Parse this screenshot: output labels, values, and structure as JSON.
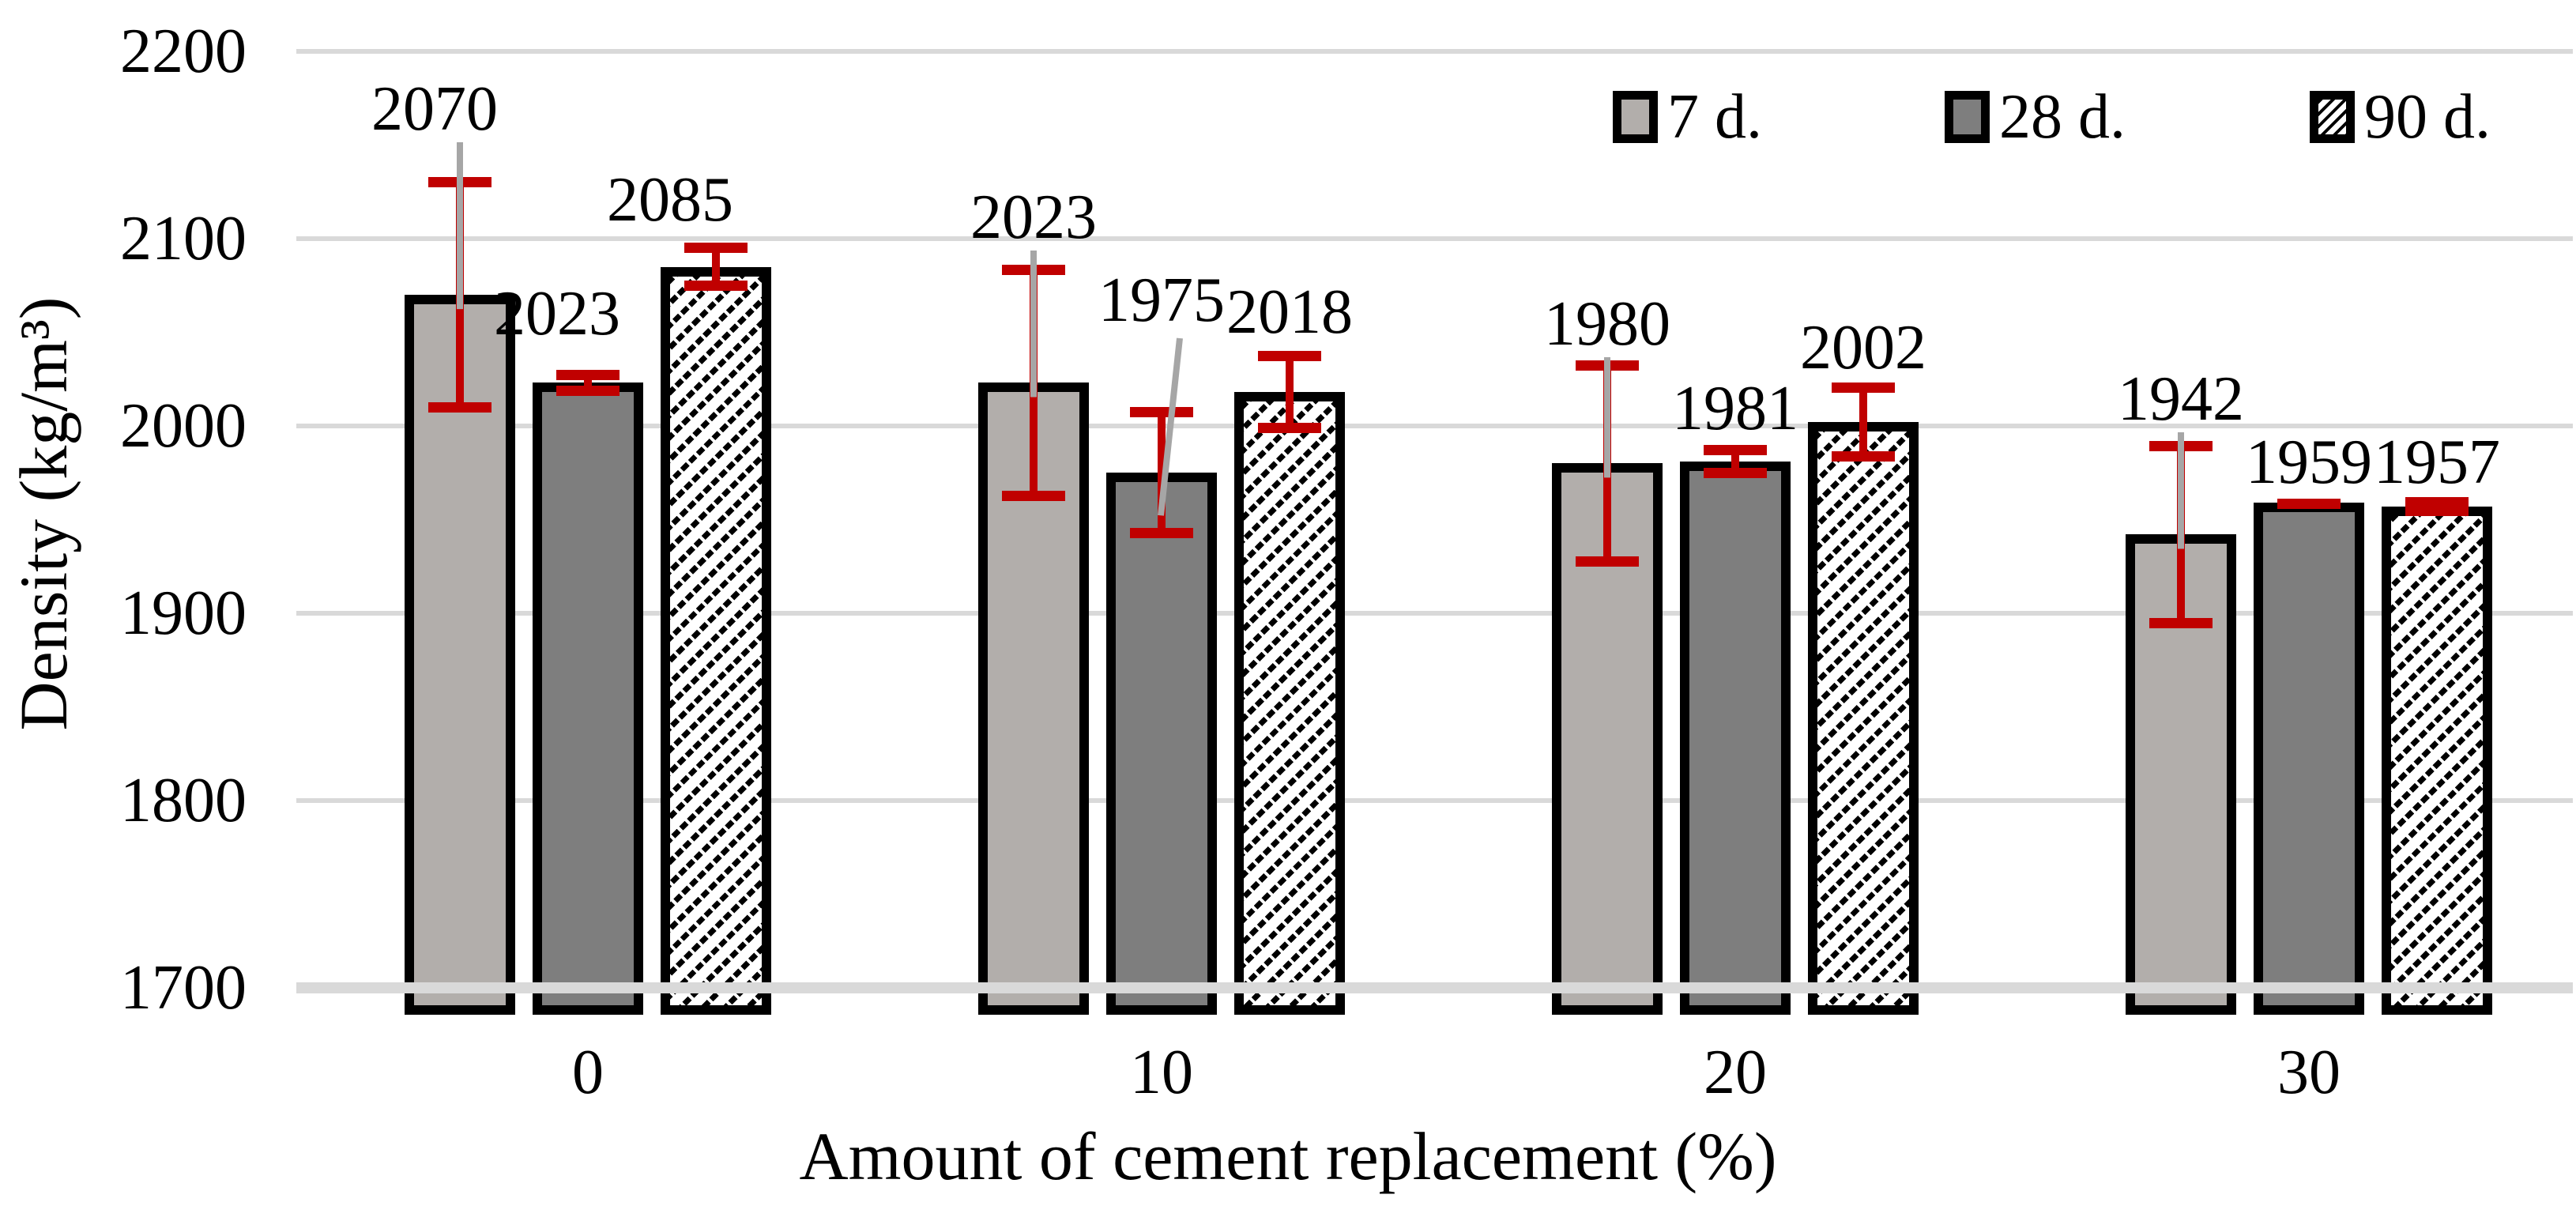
{
  "chart_data": {
    "type": "bar",
    "title": "",
    "xlabel": "Amount of cement replacement (%)",
    "ylabel": "Density (kg/m³)",
    "categories": [
      "0",
      "10",
      "20",
      "30"
    ],
    "series": [
      {
        "name": "7 d.",
        "style": "light-gray-fill",
        "values": [
          2070,
          2023,
          1980,
          1942
        ],
        "error": [
          63,
          63,
          55,
          50
        ]
      },
      {
        "name": "28 d.",
        "style": "dark-gray-fill",
        "values": [
          2023,
          1975,
          1981,
          1959
        ],
        "error": [
          7,
          35,
          9,
          2
        ]
      },
      {
        "name": "90 d.",
        "style": "diagonal-hatch",
        "values": [
          2085,
          2018,
          2002,
          1957
        ],
        "error": [
          13,
          22,
          21,
          5
        ]
      }
    ],
    "data_labels": [
      [
        "2070",
        "2023",
        "1980",
        "1942"
      ],
      [
        "2023",
        "1975",
        "1981",
        "1959"
      ],
      [
        "2085",
        "2018",
        "2002",
        "1957"
      ]
    ],
    "ylim": [
      1700,
      2200
    ],
    "ytick_labels": [
      "2200",
      "2100",
      "2000",
      "1900",
      "1800",
      "1700"
    ],
    "ytick_values": [
      2200,
      2100,
      2000,
      1900,
      1800,
      1700
    ],
    "grid": true,
    "legend_position": "top-right",
    "leader_lines": [
      {
        "series": 0,
        "category": 0,
        "shape": "vertical"
      },
      {
        "series": 0,
        "category": 1,
        "shape": "vertical"
      },
      {
        "series": 0,
        "category": 2,
        "shape": "vertical"
      },
      {
        "series": 0,
        "category": 3,
        "shape": "vertical"
      },
      {
        "series": 1,
        "category": 1,
        "shape": "slanted"
      }
    ]
  },
  "colors": {
    "bar_7d": "#B2AEAB",
    "bar_28d": "#7E7E7E",
    "hatch_stroke": "#000000",
    "bar_border": "#000000",
    "gridline": "#D9D9D9",
    "axis_line": "#D9D9D9",
    "error_bar": "#C00000",
    "leader_line": "#A6A6A6",
    "text": "#000000"
  }
}
